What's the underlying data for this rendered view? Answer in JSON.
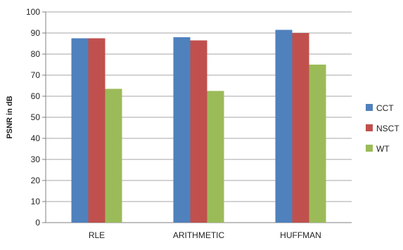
{
  "chart_data": {
    "type": "bar",
    "title": "",
    "xlabel": "",
    "ylabel": "PSNR in dB",
    "ylim": [
      0,
      100
    ],
    "yticks": [
      0,
      10,
      20,
      30,
      40,
      50,
      60,
      70,
      80,
      90,
      100
    ],
    "grid": true,
    "legend_position": "right",
    "categories": [
      "RLE",
      "ARITHMETIC",
      "HUFFMAN"
    ],
    "series": [
      {
        "name": "CCT",
        "color": "#4f81bd",
        "values": [
          87.5,
          88,
          91.5
        ]
      },
      {
        "name": "NSCT",
        "color": "#c0504d",
        "values": [
          87.5,
          86.5,
          90
        ]
      },
      {
        "name": "WT",
        "color": "#9bbb59",
        "values": [
          63.5,
          62.5,
          75
        ]
      }
    ]
  }
}
